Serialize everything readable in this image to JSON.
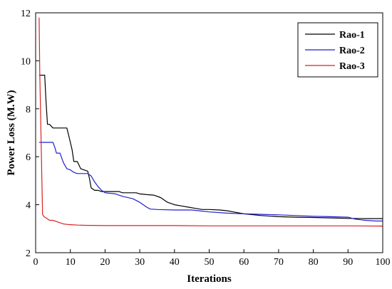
{
  "chart_data": {
    "type": "line",
    "title": "",
    "xlabel": "Iterations",
    "ylabel": "Power Loss (M.W)",
    "xlim": [
      0,
      100
    ],
    "ylim": [
      2,
      12
    ],
    "xticks": [
      0,
      10,
      20,
      30,
      40,
      50,
      60,
      70,
      80,
      90,
      100
    ],
    "yticks": [
      2,
      4,
      6,
      8,
      10,
      12
    ],
    "grid": false,
    "legend_position": "top-right",
    "series": [
      {
        "name": "Rao-1",
        "color": "#000000",
        "x": [
          1,
          2,
          2.6,
          3,
          3.4,
          4,
          5,
          6,
          7,
          9,
          9.5,
          10,
          10.5,
          11,
          12,
          13,
          15,
          15.5,
          16,
          17,
          18,
          19,
          20,
          24,
          25,
          27,
          29,
          30,
          32,
          34,
          36,
          38,
          40,
          42,
          44,
          46,
          48,
          50,
          53,
          55,
          57,
          60,
          65,
          70,
          75,
          80,
          85,
          90,
          95,
          100
        ],
        "y": [
          9.4,
          9.4,
          9.4,
          8.3,
          7.35,
          7.35,
          7.2,
          7.2,
          7.2,
          7.2,
          6.9,
          6.6,
          6.3,
          5.8,
          5.8,
          5.5,
          5.4,
          5.1,
          4.7,
          4.6,
          4.6,
          4.55,
          4.55,
          4.55,
          4.5,
          4.5,
          4.5,
          4.45,
          4.42,
          4.4,
          4.3,
          4.1,
          4.0,
          3.95,
          3.9,
          3.85,
          3.8,
          3.8,
          3.78,
          3.75,
          3.7,
          3.62,
          3.55,
          3.5,
          3.48,
          3.47,
          3.45,
          3.43,
          3.42,
          3.42
        ]
      },
      {
        "name": "Rao-2",
        "color": "#1f1fd0",
        "x": [
          1,
          2,
          3,
          4,
          5,
          5.5,
          6,
          7,
          8,
          9,
          10,
          11,
          12,
          13,
          14,
          15,
          16,
          17,
          18,
          19,
          20,
          23,
          25,
          28,
          30,
          31,
          32,
          33,
          35,
          40,
          45,
          50,
          55,
          60,
          65,
          70,
          75,
          80,
          85,
          90,
          92,
          95,
          98,
          100
        ],
        "y": [
          6.6,
          6.6,
          6.6,
          6.6,
          6.6,
          6.4,
          6.15,
          6.15,
          5.75,
          5.5,
          5.45,
          5.35,
          5.3,
          5.3,
          5.3,
          5.3,
          5.2,
          4.95,
          4.75,
          4.6,
          4.5,
          4.45,
          4.35,
          4.25,
          4.1,
          4.0,
          3.9,
          3.82,
          3.8,
          3.78,
          3.78,
          3.7,
          3.65,
          3.62,
          3.6,
          3.58,
          3.55,
          3.52,
          3.5,
          3.48,
          3.4,
          3.35,
          3.32,
          3.32
        ]
      },
      {
        "name": "Rao-3",
        "color": "#dd2020",
        "x": [
          1,
          1.2,
          1.6,
          2,
          2.4,
          3,
          4,
          5,
          6,
          7,
          8,
          9,
          10,
          12,
          15,
          20,
          30,
          40,
          50,
          60,
          70,
          80,
          90,
          100
        ],
        "y": [
          11.8,
          9.5,
          6.5,
          3.6,
          3.5,
          3.45,
          3.35,
          3.35,
          3.3,
          3.25,
          3.2,
          3.18,
          3.17,
          3.15,
          3.14,
          3.13,
          3.13,
          3.13,
          3.12,
          3.12,
          3.12,
          3.12,
          3.12,
          3.11
        ]
      }
    ]
  }
}
